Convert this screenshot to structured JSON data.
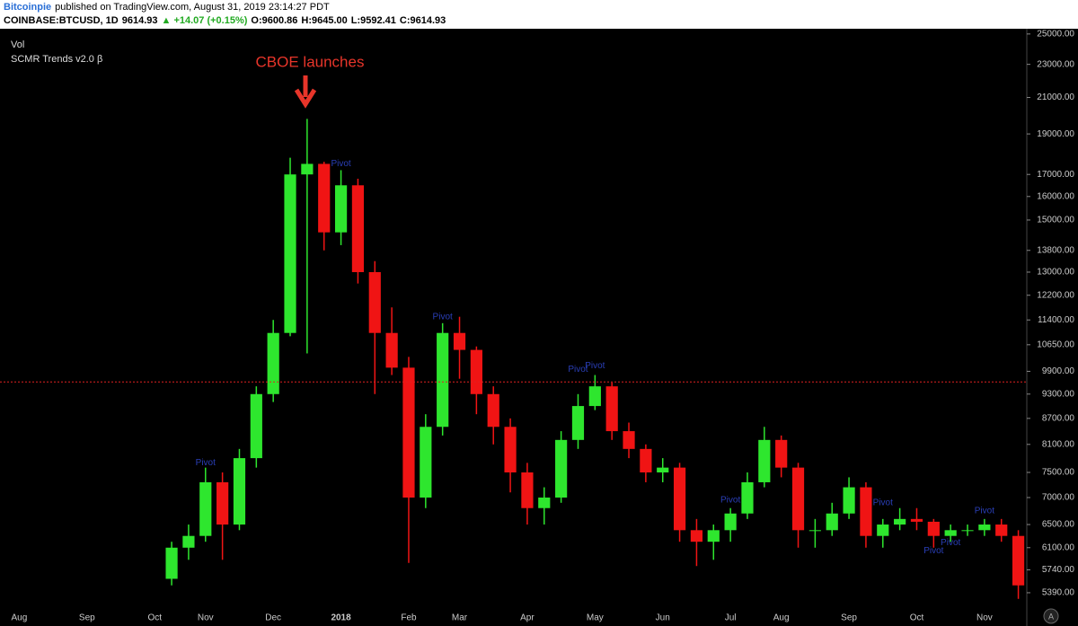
{
  "header": {
    "author": "Bitcoinpie",
    "published": "published on TradingView.com, August 31, 2019 23:14:27 PDT",
    "symbol": "COINBASE:BTCUSD, 1D",
    "last": "9614.93",
    "change": "▲ +14.07 (+0.15%)",
    "open": "O:9600.86",
    "high": "H:9645.00",
    "low": "L:9592.41",
    "close": "C:9614.93"
  },
  "chart_data": {
    "type": "candlestick",
    "log_scale": true,
    "up_color": "#2ee62e",
    "down_color": "#f01414",
    "legend": [
      "Vol",
      "SCMR Trends v2.0 β"
    ],
    "annotation": "CBOE launches",
    "price_line": 9614.93,
    "categories": [
      "Aug",
      null,
      null,
      null,
      "Sep",
      null,
      null,
      null,
      "Oct",
      null,
      null,
      "Nov",
      null,
      null,
      null,
      "Dec",
      null,
      null,
      null,
      "2018",
      null,
      null,
      null,
      "Feb",
      null,
      null,
      "Mar",
      null,
      null,
      null,
      "Apr",
      null,
      null,
      null,
      "May",
      null,
      null,
      null,
      "Jun",
      null,
      null,
      null,
      "Jul",
      null,
      null,
      "Aug",
      null,
      null,
      null,
      "Sep",
      null,
      null,
      null,
      "Oct",
      null,
      null,
      null,
      "Nov",
      null,
      null
    ],
    "open": [
      null,
      null,
      null,
      null,
      null,
      null,
      null,
      null,
      null,
      5600,
      6100,
      6300,
      7300,
      6500,
      7800,
      9300,
      11000,
      17000,
      17500,
      14500,
      16500,
      13000,
      11000,
      10000,
      7000,
      8500,
      11000,
      10500,
      9300,
      8500,
      7500,
      6800,
      7000,
      8200,
      9000,
      9500,
      8400,
      8000,
      7500,
      7600,
      6400,
      6200,
      6400,
      6700,
      7300,
      8200,
      7600,
      6400,
      6400,
      6700,
      7200,
      6300,
      6500,
      6600,
      6550,
      6300,
      6400,
      6400,
      6500,
      6300
    ],
    "high": [
      null,
      null,
      null,
      null,
      null,
      null,
      null,
      null,
      null,
      6200,
      6500,
      7600,
      7500,
      8000,
      9500,
      11400,
      17800,
      19800,
      17600,
      17200,
      16800,
      13400,
      11800,
      10300,
      8800,
      11300,
      11500,
      10600,
      9500,
      8700,
      7700,
      7200,
      8400,
      9300,
      9800,
      9600,
      8600,
      8100,
      7800,
      7700,
      6600,
      6500,
      6800,
      7500,
      8500,
      8300,
      7700,
      6600,
      6900,
      7400,
      7300,
      6600,
      6800,
      6800,
      6600,
      6500,
      6500,
      6600,
      6600,
      6400
    ],
    "low": [
      null,
      null,
      null,
      null,
      null,
      null,
      null,
      null,
      null,
      5500,
      5900,
      6200,
      5900,
      6400,
      7600,
      9100,
      10900,
      10400,
      13800,
      14000,
      12600,
      9300,
      9800,
      5850,
      6800,
      8300,
      9700,
      8800,
      8100,
      7100,
      6500,
      6500,
      6900,
      8000,
      8900,
      8200,
      7800,
      7300,
      7300,
      6200,
      5800,
      5900,
      6200,
      6600,
      7200,
      7400,
      6100,
      6100,
      6300,
      6600,
      6100,
      6100,
      6400,
      6400,
      6100,
      6200,
      6300,
      6300,
      6200,
      5300
    ],
    "close": [
      null,
      null,
      null,
      null,
      null,
      null,
      null,
      null,
      null,
      6100,
      6300,
      7300,
      6500,
      7800,
      9300,
      11000,
      17000,
      17500,
      14500,
      16500,
      13000,
      11000,
      10000,
      7000,
      8500,
      11000,
      10500,
      9300,
      8500,
      7500,
      6800,
      7000,
      8200,
      9000,
      9500,
      8400,
      8000,
      7500,
      7600,
      6400,
      6200,
      6400,
      6700,
      7300,
      8200,
      7600,
      6400,
      6400,
      6700,
      7200,
      6300,
      6500,
      6600,
      6550,
      6300,
      6400,
      6400,
      6500,
      6300,
      5500
    ],
    "pivots": [
      {
        "text": "Pivot",
        "index": 19,
        "price": 17500
      },
      {
        "text": "Pivot",
        "index": 25,
        "price": 11500
      },
      {
        "text": "Pivot",
        "index": 33,
        "price": 9950
      },
      {
        "text": "Pivot",
        "index": 34,
        "price": 10050
      },
      {
        "text": "Pivot",
        "index": 11,
        "price": 7700
      },
      {
        "text": "Pivot",
        "index": 42,
        "price": 6950
      },
      {
        "text": "Pivot",
        "index": 51,
        "price": 6900
      },
      {
        "text": "Pivot",
        "index": 57,
        "price": 6750
      },
      {
        "text": "Pivot",
        "index": 55,
        "price": 6180
      },
      {
        "text": "Pivot",
        "index": 54,
        "price": 6050
      }
    ],
    "ylim": [
      5130,
      25300
    ],
    "yticks": [
      {
        "value": 25000,
        "label": "25000.00"
      },
      {
        "value": 23000,
        "label": "23000.00"
      },
      {
        "value": 21000,
        "label": "21000.00"
      },
      {
        "value": 19000,
        "label": "19000.00"
      },
      {
        "value": 17000,
        "label": "17000.00"
      },
      {
        "value": 16000,
        "label": "16000.00"
      },
      {
        "value": 15000,
        "label": "15000.00"
      },
      {
        "value": 13800,
        "label": "13800.00"
      },
      {
        "value": 13000,
        "label": "13000.00"
      },
      {
        "value": 12200,
        "label": "12200.00"
      },
      {
        "value": 11400,
        "label": "11400.00"
      },
      {
        "value": 10650,
        "label": "10650.00"
      },
      {
        "value": 9900,
        "label": "9900.00"
      },
      {
        "value": 9300,
        "label": "9300.00"
      },
      {
        "value": 8700,
        "label": "8700.00"
      },
      {
        "value": 8100,
        "label": "8100.00"
      },
      {
        "value": 7500,
        "label": "7500.00"
      },
      {
        "value": 7000,
        "label": "7000.00"
      },
      {
        "value": 6500,
        "label": "6500.00"
      },
      {
        "value": 6100,
        "label": "6100.00"
      },
      {
        "value": 5740,
        "label": "5740.00"
      },
      {
        "value": 5390,
        "label": "5390.00"
      }
    ]
  }
}
